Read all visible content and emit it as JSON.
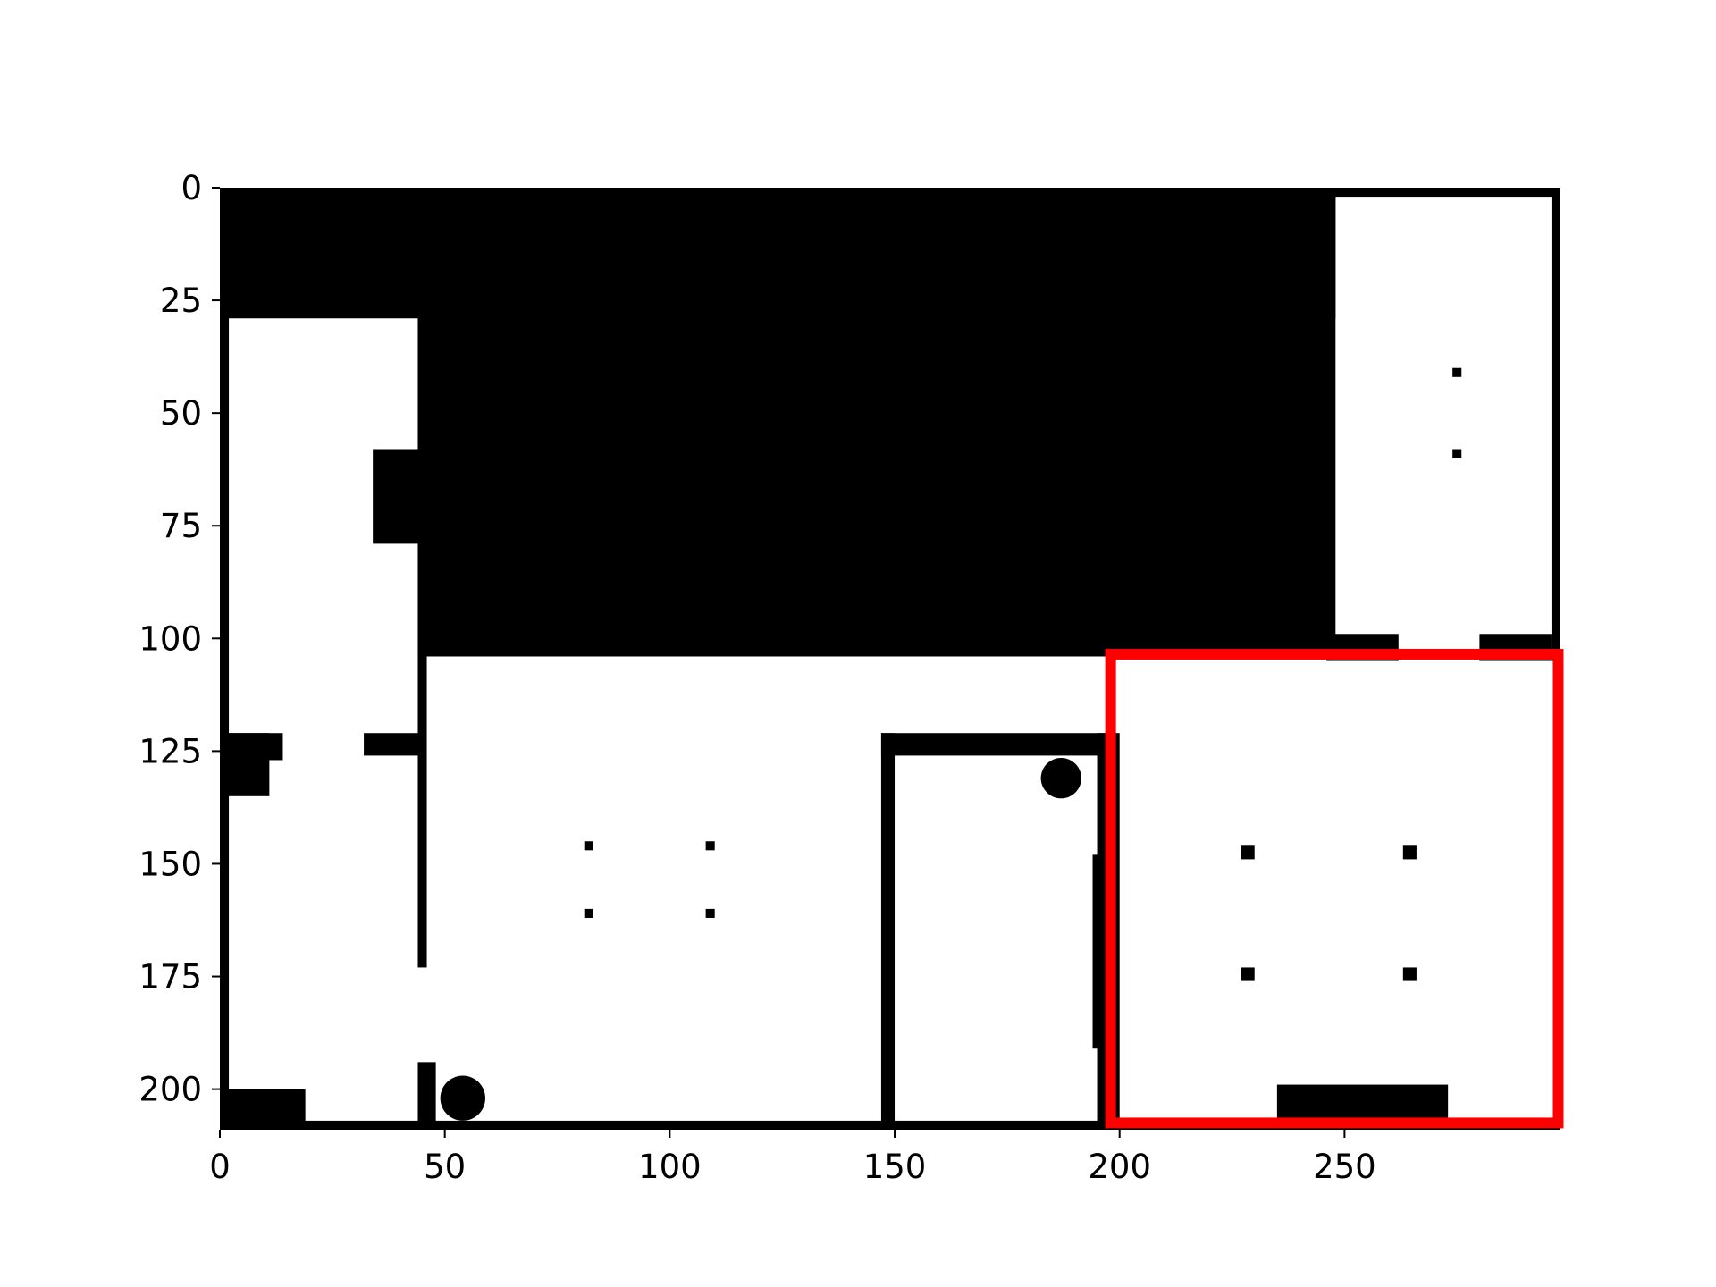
{
  "map": {
    "type": "occupancy-grid",
    "x_ticks": [
      "0",
      "50",
      "100",
      "150",
      "200",
      "250"
    ],
    "y_ticks": [
      "0",
      "25",
      "50",
      "75",
      "100",
      "125",
      "150",
      "175",
      "200"
    ],
    "xlim": [
      0,
      298
    ],
    "ylim": [
      0,
      209
    ],
    "y_inverted": true,
    "colors": {
      "free": "#ffffff",
      "occupied": "#000000",
      "highlight": "#ff0000"
    },
    "occupied_regions": [
      [
        0,
        0,
        298,
        2
      ],
      [
        0,
        0,
        2,
        209
      ],
      [
        296,
        0,
        2,
        105
      ],
      [
        0,
        207,
        298,
        2
      ],
      [
        0,
        0,
        248,
        29
      ],
      [
        44,
        0,
        204,
        104
      ],
      [
        34,
        58,
        11,
        21
      ],
      [
        44,
        29,
        2,
        144
      ],
      [
        44,
        194,
        4,
        15
      ],
      [
        0,
        121,
        14,
        6
      ],
      [
        0,
        121,
        11,
        14
      ],
      [
        32,
        121,
        13,
        5
      ],
      [
        0,
        200,
        19,
        9
      ],
      [
        147,
        121,
        52,
        5
      ],
      [
        147,
        121,
        3,
        88
      ],
      [
        194,
        148,
        5,
        43
      ],
      [
        195,
        121,
        5,
        88
      ],
      [
        246,
        99,
        16,
        6
      ],
      [
        280,
        99,
        16,
        6
      ],
      [
        235,
        199,
        38,
        10
      ],
      [
        81,
        145,
        2,
        2
      ],
      [
        108,
        145,
        2,
        2
      ],
      [
        81,
        160,
        2,
        2
      ],
      [
        108,
        160,
        2,
        2
      ],
      [
        227,
        146,
        3,
        3
      ],
      [
        263,
        146,
        3,
        3
      ],
      [
        227,
        173,
        3,
        3
      ],
      [
        263,
        173,
        3,
        3
      ],
      [
        274,
        40,
        2,
        2
      ],
      [
        274,
        58,
        2,
        2
      ]
    ],
    "occupied_circles": [
      [
        187,
        131,
        4.5
      ],
      [
        54,
        202,
        5
      ]
    ],
    "highlight_box": [
      198,
      103.5,
      99.5,
      104
    ]
  }
}
